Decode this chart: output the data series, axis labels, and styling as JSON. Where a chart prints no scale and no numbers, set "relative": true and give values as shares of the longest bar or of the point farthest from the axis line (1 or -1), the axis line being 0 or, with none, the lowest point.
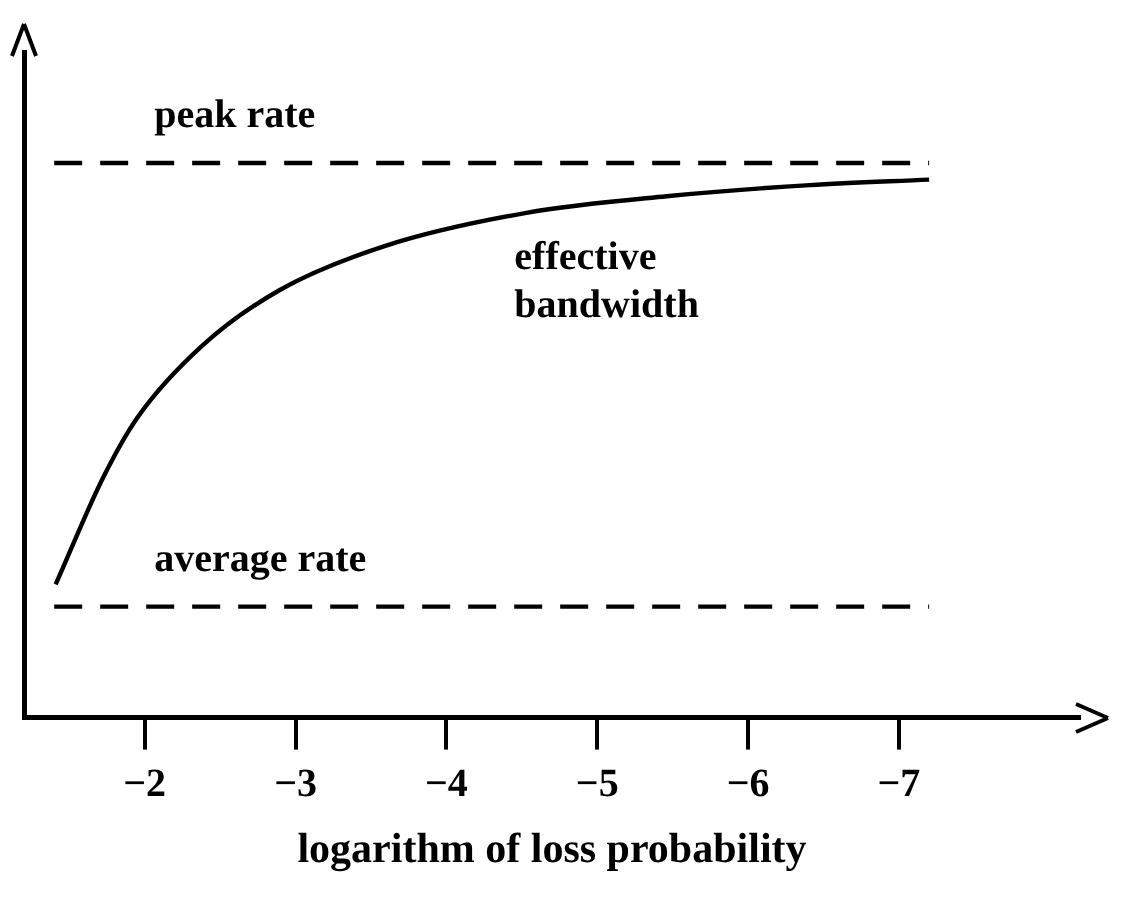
{
  "chart_data": {
    "type": "line",
    "relative": true,
    "xlabel": "logarithm of loss probability",
    "xlim": [
      -1.2,
      -8.2
    ],
    "xticks": [
      -2,
      -3,
      -4,
      -5,
      -6,
      -7
    ],
    "grid": false,
    "legend": false,
    "marker": "none",
    "series": [
      {
        "name": "peak rate",
        "color": "#000000",
        "line_style": "dashed",
        "x": [
          -1.4,
          -7.2
        ],
        "values": [
          1,
          1
        ]
      },
      {
        "name": "effective bandwidth",
        "color": "#000000",
        "line_style": "solid",
        "x": [
          -1.41,
          -1.72,
          -1.95,
          -2.38,
          -2.89,
          -3.59,
          -4.53,
          -5.46,
          -6.41,
          -7.2
        ],
        "values": [
          0.24,
          0.43,
          0.54,
          0.67,
          0.77,
          0.85,
          0.91,
          0.94,
          0.96,
          0.97
        ]
      },
      {
        "name": "average rate",
        "color": "#000000",
        "line_style": "dashed",
        "x": [
          -1.4,
          -7.2
        ],
        "values": [
          0.2,
          0.2
        ]
      }
    ]
  }
}
